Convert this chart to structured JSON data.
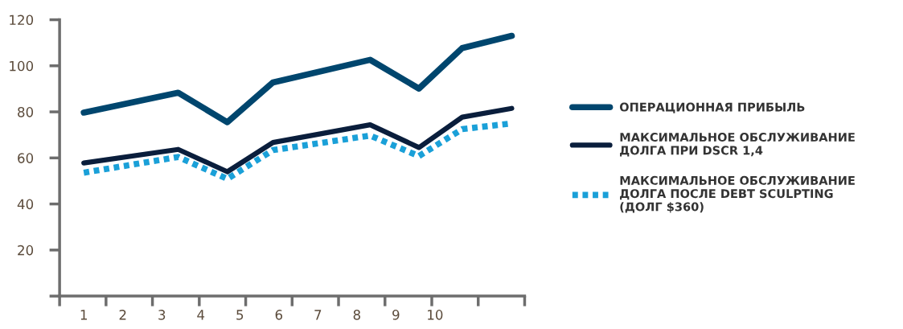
{
  "chart_data": {
    "type": "line",
    "x": [
      1.0,
      3.42,
      4.68,
      5.85,
      8.34,
      9.59,
      10.7,
      11.97
    ],
    "xlim": [
      0.38,
      12.3
    ],
    "xticks": [
      {
        "value": 0.38,
        "label": null
      },
      {
        "value": 1.57,
        "label": null
      },
      {
        "value": 2.76,
        "label": null
      },
      {
        "value": 3.96,
        "label": null
      },
      {
        "value": 5.15,
        "label": null
      },
      {
        "value": 6.34,
        "label": null
      },
      {
        "value": 7.53,
        "label": null
      },
      {
        "value": 8.72,
        "label": null
      },
      {
        "value": 9.92,
        "label": null
      },
      {
        "value": 11.11,
        "label": null
      },
      {
        "value": 12.3,
        "label": null
      },
      1,
      2,
      3,
      4,
      5,
      6,
      7,
      8,
      9,
      10
    ],
    "ylim": [
      0,
      120
    ],
    "yticks": [
      {
        "value": 0,
        "label": null
      },
      20,
      40,
      60,
      80,
      100,
      120
    ],
    "grid": false,
    "legend": "right",
    "series": [
      {
        "name": "ОПЕРАЦИОННАЯ ПРИБЫЛЬ",
        "color": "#00466e",
        "line_style": "solid",
        "values": [
          79.7,
          88.3,
          75.5,
          92.8,
          102.6,
          90.1,
          107.7,
          113
        ]
      },
      {
        "name": "МАКСИМАЛЬНОЕ ОБСЛУЖИВАНИЕ\nДОЛГА ПРИ DSCR 1,4",
        "color": "#0a1e3c",
        "line_style": "solid",
        "values": [
          57.8,
          63.7,
          54,
          66.7,
          74.4,
          64.5,
          77.7,
          81.5
        ]
      },
      {
        "name": "МАКСИМАЛЬНОЕ ОБСЛУЖИВАНИЕ\nДОЛГА ПОСЛЕ DEBT SCULPTING\n(ДОЛГ $360)",
        "color": "#1aa0d8",
        "line_style": "dotted",
        "values": [
          53.6,
          60.4,
          50.9,
          63.4,
          69.7,
          60.8,
          72.5,
          75
        ]
      }
    ]
  }
}
